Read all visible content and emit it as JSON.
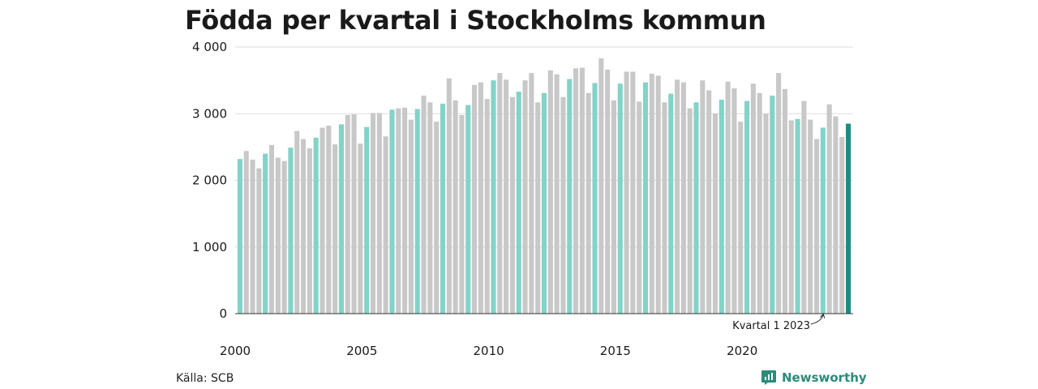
{
  "title": "Födda per kvartal i Stockholms kommun",
  "source": "Källa: SCB",
  "brand": "Newsworthy",
  "colors": {
    "q1": "#82d3c8",
    "other": "#c8c8c8",
    "latest": "#1e8c80",
    "grid": "#dedede",
    "axis": "#333333"
  },
  "chart_data": {
    "type": "bar",
    "title": "Födda per kvartal i Stockholms kommun",
    "xlabel": "",
    "ylabel": "",
    "ylim": [
      0,
      4000
    ],
    "yticks": [
      0,
      1000,
      2000,
      3000,
      4000
    ],
    "ytick_labels": [
      "0",
      "1 000",
      "2 000",
      "3 000",
      "4 000"
    ],
    "xtick_labels": [
      "2000",
      "2005",
      "2010",
      "2015",
      "2020"
    ],
    "annotation": "Kvartal 1 2023",
    "start_year": 2000,
    "values": [
      2320,
      2440,
      2310,
      2180,
      2400,
      2530,
      2340,
      2290,
      2490,
      2740,
      2620,
      2480,
      2640,
      2790,
      2820,
      2540,
      2840,
      2980,
      2990,
      2550,
      2800,
      3010,
      3010,
      2660,
      3060,
      3080,
      3090,
      2910,
      3070,
      3270,
      3170,
      2880,
      3150,
      3530,
      3200,
      2980,
      3130,
      3430,
      3470,
      3220,
      3500,
      3610,
      3510,
      3250,
      3330,
      3500,
      3610,
      3170,
      3310,
      3650,
      3590,
      3250,
      3520,
      3680,
      3690,
      3310,
      3460,
      3830,
      3660,
      3200,
      3450,
      3630,
      3630,
      3180,
      3470,
      3600,
      3570,
      3170,
      3300,
      3510,
      3470,
      3080,
      3170,
      3500,
      3350,
      3000,
      3210,
      3480,
      3380,
      2880,
      3190,
      3450,
      3310,
      3000,
      3270,
      3610,
      3370,
      2900,
      2920,
      3190,
      2910,
      2620,
      2790,
      3140,
      2960,
      2650,
      2850
    ]
  }
}
